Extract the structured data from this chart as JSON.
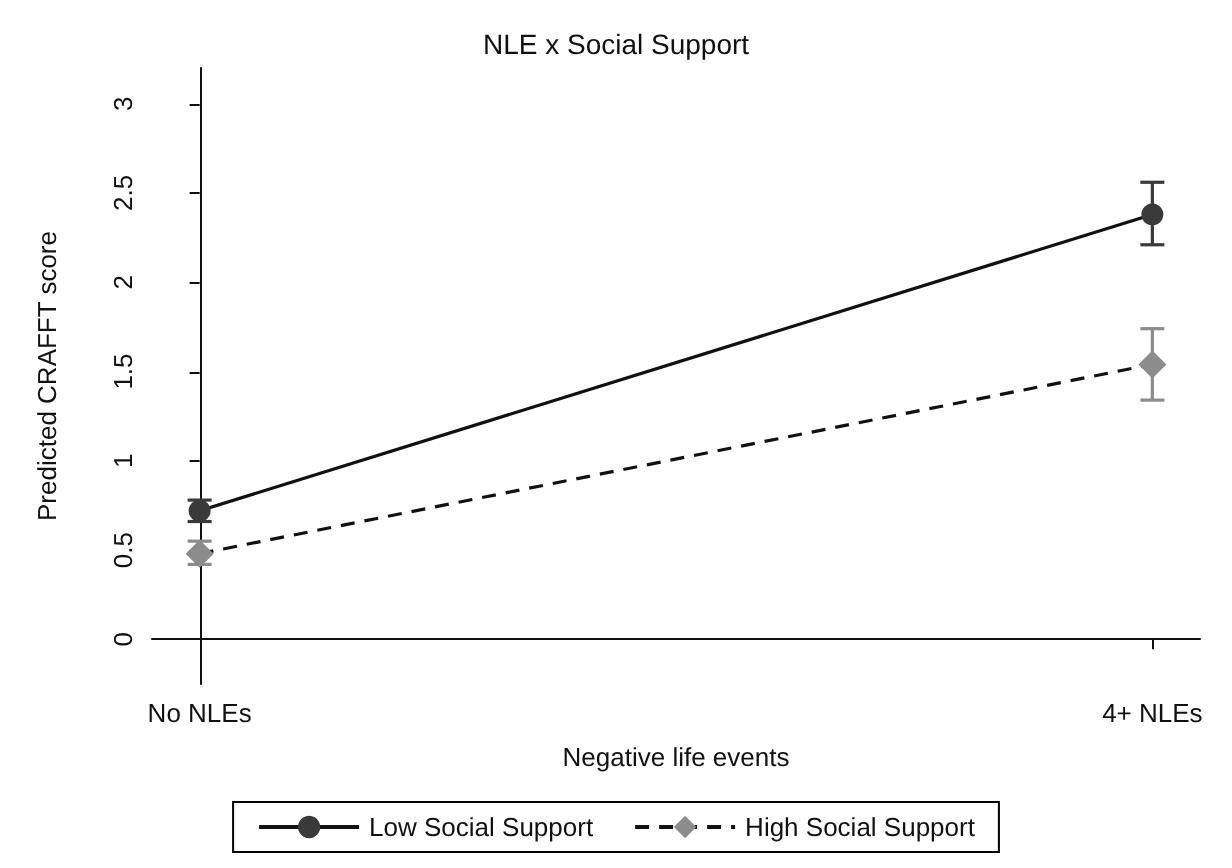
{
  "chart_data": {
    "type": "line",
    "title": "NLE x Social Support",
    "xlabel": "Negative life events",
    "ylabel": "Predicted CRAFFT score",
    "categories": [
      "No NLEs",
      "4+ NLEs"
    ],
    "series": [
      {
        "name": "Low Social Support",
        "color": "#3a3a3a",
        "marker": "circle",
        "line_style": "solid",
        "values": [
          0.72,
          2.38
        ],
        "errors": [
          [
            0.66,
            0.78
          ],
          [
            2.21,
            2.56
          ]
        ]
      },
      {
        "name": "High Social Support",
        "color": "#8c8c8c",
        "marker": "diamond",
        "line_style": "dashed",
        "values": [
          0.48,
          1.54
        ],
        "errors": [
          [
            0.42,
            0.55
          ],
          [
            1.34,
            1.74
          ]
        ]
      }
    ],
    "ylim": [
      -0.25,
      3.2
    ],
    "yticks": [
      0,
      0.5,
      1,
      1.5,
      2,
      2.5,
      3
    ],
    "grid": false,
    "legend": "bottom"
  }
}
